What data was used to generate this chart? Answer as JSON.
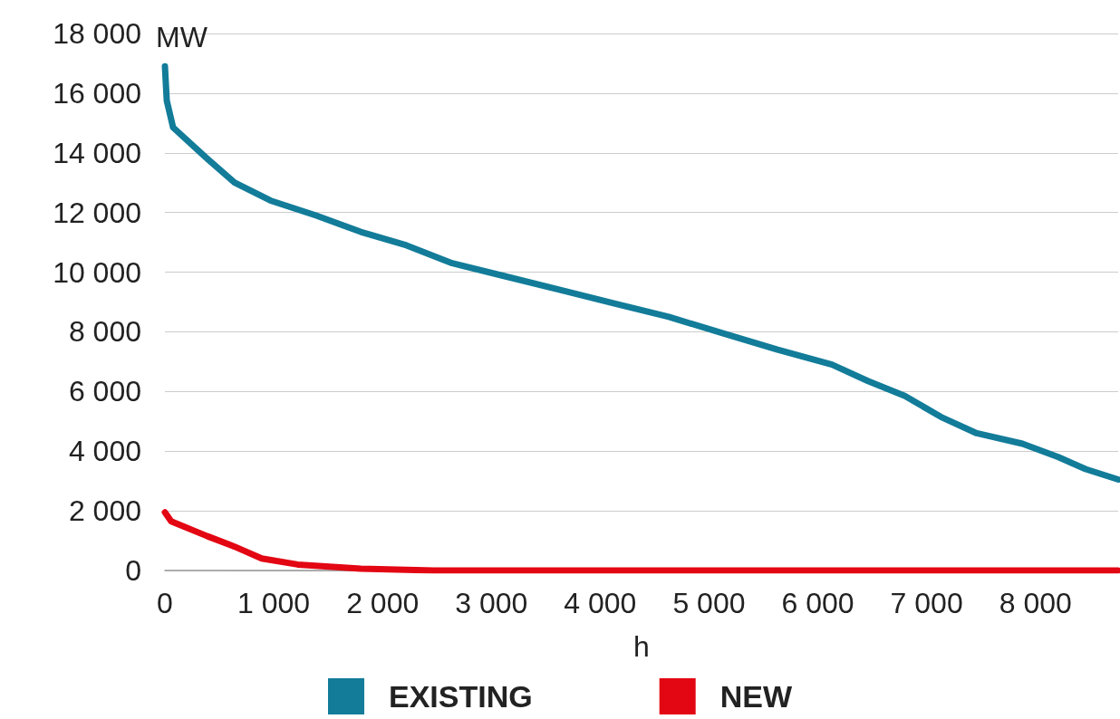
{
  "chart_data": {
    "type": "line",
    "xlabel": "h",
    "ylabel": "MW",
    "legend": "bottom",
    "grid": "y",
    "marker": "none",
    "line_style": "solid",
    "xlim": [
      0,
      8760
    ],
    "ylim": [
      0,
      18000
    ],
    "xticks": [
      0,
      {
        "value": 1000,
        "label": "1 000"
      },
      {
        "value": 2000,
        "label": "2 000"
      },
      {
        "value": 3000,
        "label": "3 000"
      },
      {
        "value": 4000,
        "label": "4 000"
      },
      {
        "value": 5000,
        "label": "5 000"
      },
      {
        "value": 6000,
        "label": "6 000"
      },
      {
        "value": 7000,
        "label": "7 000"
      },
      {
        "value": 8000,
        "label": "8 000"
      }
    ],
    "yticks": [
      0,
      {
        "value": 2000,
        "label": "2 000"
      },
      {
        "value": 4000,
        "label": "4 000"
      },
      {
        "value": 6000,
        "label": "6 000"
      },
      {
        "value": 8000,
        "label": "8 000"
      },
      {
        "value": 10000,
        "label": "10 000"
      },
      {
        "value": 12000,
        "label": "12 000"
      },
      {
        "value": 14000,
        "label": "14 000"
      },
      {
        "value": 16000,
        "label": "16 000"
      },
      {
        "value": 18000,
        "label": "18 000"
      }
    ],
    "series": [
      {
        "name": "EXISTING",
        "color": "#127c99",
        "x": [
          0,
          17,
          75,
          390,
          640,
          970,
          1390,
          1800,
          2220,
          2640,
          3140,
          3640,
          4130,
          4630,
          5130,
          5630,
          6130,
          6460,
          6800,
          7130,
          7460,
          7880,
          8210,
          8460,
          8760
        ],
        "values": [
          16900,
          15750,
          14850,
          13800,
          13000,
          12400,
          11900,
          11350,
          10900,
          10300,
          9850,
          9400,
          8950,
          8500,
          7950,
          7400,
          6900,
          6350,
          5850,
          5150,
          4600,
          4250,
          3800,
          3400,
          3050
        ]
      },
      {
        "name": "NEW",
        "color": "#e30613",
        "x": [
          0,
          58,
          390,
          640,
          890,
          1220,
          1800,
          2470,
          8760
        ],
        "values": [
          1950,
          1650,
          1150,
          800,
          400,
          200,
          60,
          0,
          0
        ]
      }
    ]
  }
}
